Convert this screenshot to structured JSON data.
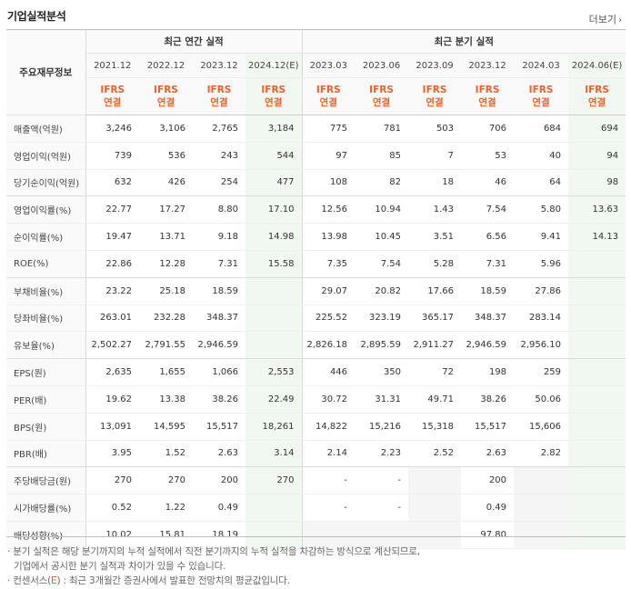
{
  "section_title": "기업실적분석",
  "more_link": "더보기",
  "table": {
    "corner_label": "주요재무정보",
    "group_annual": "최근 연간 실적",
    "group_quarter": "최근 분기 실적",
    "periods": [
      "2021.12",
      "2022.12",
      "2023.12",
      "2024.12(E)",
      "2023.03",
      "2023.06",
      "2023.09",
      "2023.12",
      "2024.03",
      "2024.06(E)"
    ],
    "ifrs_top": "IFRS",
    "ifrs_bottom": "연결",
    "rows": [
      {
        "label": "매출액(억원)",
        "values": [
          "3,246",
          "3,106",
          "2,765",
          "3,184",
          "775",
          "781",
          "503",
          "706",
          "684",
          "694"
        ]
      },
      {
        "label": "영업이익(억원)",
        "values": [
          "739",
          "536",
          "243",
          "544",
          "97",
          "85",
          "7",
          "53",
          "40",
          "94"
        ]
      },
      {
        "label": "당기순이익(억원)",
        "values": [
          "632",
          "426",
          "254",
          "477",
          "108",
          "82",
          "18",
          "46",
          "64",
          "98"
        ]
      },
      {
        "label": "영업이익률(%)",
        "values": [
          "22.77",
          "17.27",
          "8.80",
          "17.10",
          "12.56",
          "10.94",
          "1.43",
          "7.54",
          "5.80",
          "13.63"
        ]
      },
      {
        "label": "순이익률(%)",
        "values": [
          "19.47",
          "13.71",
          "9.18",
          "14.98",
          "13.98",
          "10.45",
          "3.51",
          "6.56",
          "9.41",
          "14.13"
        ]
      },
      {
        "label": "ROE(%)",
        "values": [
          "22.86",
          "12.28",
          "7.31",
          "15.58",
          "7.35",
          "7.54",
          "5.28",
          "7.31",
          "5.96",
          ""
        ]
      },
      {
        "label": "부채비율(%)",
        "values": [
          "23.22",
          "25.18",
          "18.59",
          "",
          "29.07",
          "20.82",
          "17.66",
          "18.59",
          "27.86",
          ""
        ]
      },
      {
        "label": "당좌비율(%)",
        "values": [
          "263.01",
          "232.28",
          "348.37",
          "",
          "225.52",
          "323.19",
          "365.17",
          "348.37",
          "283.14",
          ""
        ]
      },
      {
        "label": "유보율(%)",
        "values": [
          "2,502.27",
          "2,791.55",
          "2,946.59",
          "",
          "2,826.18",
          "2,895.59",
          "2,911.27",
          "2,946.59",
          "2,956.10",
          ""
        ]
      },
      {
        "label": "EPS(원)",
        "values": [
          "2,635",
          "1,655",
          "1,066",
          "2,553",
          "446",
          "350",
          "72",
          "198",
          "259",
          ""
        ]
      },
      {
        "label": "PER(배)",
        "values": [
          "19.62",
          "13.38",
          "38.26",
          "22.49",
          "30.72",
          "31.31",
          "49.71",
          "38.26",
          "50.06",
          ""
        ]
      },
      {
        "label": "BPS(원)",
        "values": [
          "13,091",
          "14,595",
          "15,517",
          "18,261",
          "14,822",
          "15,216",
          "15,318",
          "15,517",
          "15,606",
          ""
        ]
      },
      {
        "label": "PBR(배)",
        "values": [
          "3.95",
          "1.52",
          "2.63",
          "3.14",
          "2.14",
          "2.23",
          "2.52",
          "2.63",
          "2.82",
          ""
        ]
      },
      {
        "label": "주당배당금(원)",
        "values": [
          "270",
          "270",
          "200",
          "270",
          "-",
          "-",
          "",
          "200",
          "",
          ""
        ]
      },
      {
        "label": "시가배당률(%)",
        "values": [
          "0.52",
          "1.22",
          "0.49",
          "",
          "-",
          "-",
          "",
          "0.49",
          "",
          ""
        ]
      },
      {
        "label": "배당성향(%)",
        "values": [
          "10.02",
          "15.81",
          "18.19",
          "",
          "",
          "",
          "",
          "97.80",
          "",
          ""
        ]
      }
    ]
  },
  "notes": {
    "line1": "· 분기 실적은 해당 분기까지의 누적 실적에서 직전 분기까지의 누적 실적을 차감하는 방식으로 계산되므로,",
    "line2": "기업에서 공시한 분기 실적과 차이가 있을 수 있습니다.",
    "line3_prefix": "· 컨센서스(",
    "line3_e": "E",
    "line3_suffix": ") : 최근 3개월간 증권사에서 발표한 전망치의 평균값입니다."
  }
}
